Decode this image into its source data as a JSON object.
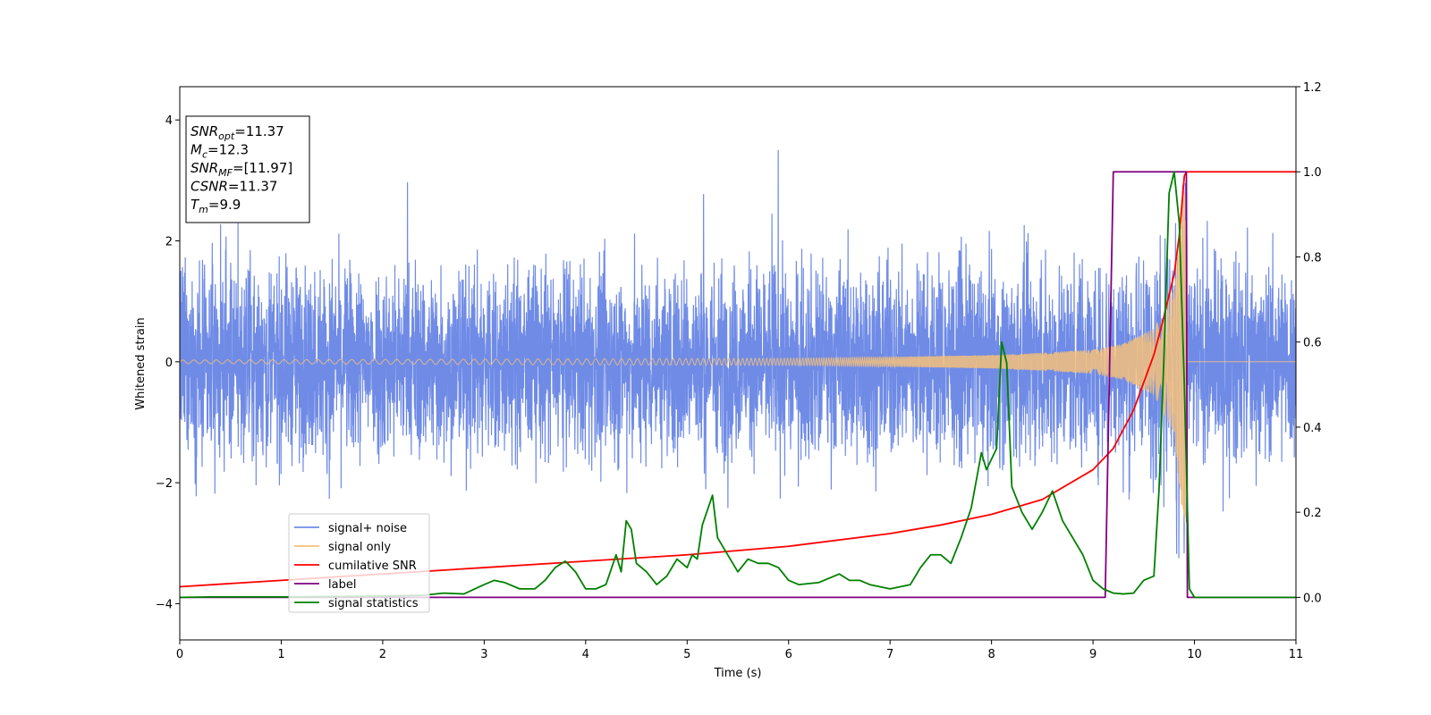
{
  "chart_data": {
    "type": "line",
    "xlabel": "Time (s)",
    "ylabel_left": "Whitened strain",
    "xlim": [
      0,
      11
    ],
    "ylim_left": [
      -4.6,
      4.55
    ],
    "ylim_right": [
      -0.1,
      1.2
    ],
    "xticks": [
      "0",
      "1",
      "2",
      "3",
      "4",
      "5",
      "6",
      "7",
      "8",
      "9",
      "10",
      "11"
    ],
    "yticks_left": [
      "−4",
      "−2",
      "0",
      "2",
      "4"
    ],
    "yticks_right": [
      "0.0",
      "0.2",
      "0.4",
      "0.6",
      "0.8",
      "1.0",
      "1.2"
    ],
    "grid": false,
    "legend_position": "lower-left",
    "info_box": {
      "lines": [
        {
          "main": "SNR",
          "sub": "opt",
          "rest": "=11.37"
        },
        {
          "main": "M",
          "sub": "c",
          "rest": "=12.3"
        },
        {
          "main": "SNR",
          "sub": "MF",
          "rest": "=[11.97]"
        },
        {
          "main": "CSNR",
          "sub": "",
          "rest": "=11.37"
        },
        {
          "main": "T",
          "sub": "m",
          "rest": "=9.9"
        }
      ]
    },
    "series": [
      {
        "name": "signal+ noise",
        "color": "#6f8be6",
        "axis": "left",
        "description_amplitude": "noise envelope roughly ±2.5 with spikes to ±4",
        "x_range": [
          0,
          11
        ]
      },
      {
        "name": "signal only",
        "color": "#f5c07a",
        "axis": "left",
        "chirp_x": [
          0,
          2,
          4,
          6,
          7,
          8,
          8.5,
          9,
          9.3,
          9.6,
          9.8,
          9.9,
          10,
          11
        ],
        "chirp_envelope": [
          0.03,
          0.04,
          0.05,
          0.06,
          0.08,
          0.11,
          0.15,
          0.2,
          0.3,
          0.55,
          1.2,
          2.9,
          0,
          0
        ]
      },
      {
        "name": "cumilative SNR",
        "color": "#ff0000",
        "axis": "right",
        "x": [
          0,
          1,
          2,
          3,
          4,
          5,
          6,
          7,
          7.5,
          8,
          8.5,
          9,
          9.2,
          9.4,
          9.6,
          9.7,
          9.8,
          9.85,
          9.9,
          9.92,
          11
        ],
        "y": [
          0.025,
          0.04,
          0.055,
          0.07,
          0.085,
          0.1,
          0.12,
          0.15,
          0.17,
          0.195,
          0.23,
          0.3,
          0.35,
          0.44,
          0.57,
          0.66,
          0.76,
          0.85,
          0.99,
          1.0,
          1.0
        ]
      },
      {
        "name": "label",
        "color": "#800080",
        "axis": "right",
        "x": [
          0,
          9.12,
          9.2,
          9.92,
          9.93,
          11
        ],
        "y": [
          0,
          0,
          1,
          1,
          0,
          0
        ]
      },
      {
        "name": "signal statistics",
        "color": "#008000",
        "axis": "right",
        "x": [
          0,
          0.3,
          1.0,
          1.5,
          2.0,
          2.4,
          2.6,
          2.8,
          3.0,
          3.1,
          3.2,
          3.35,
          3.5,
          3.6,
          3.7,
          3.8,
          3.9,
          4.0,
          4.1,
          4.2,
          4.3,
          4.35,
          4.4,
          4.45,
          4.5,
          4.6,
          4.7,
          4.8,
          4.9,
          5.0,
          5.05,
          5.1,
          5.15,
          5.25,
          5.3,
          5.45,
          5.5,
          5.6,
          5.7,
          5.8,
          5.9,
          6.0,
          6.1,
          6.3,
          6.5,
          6.6,
          6.7,
          6.8,
          6.9,
          7.0,
          7.1,
          7.2,
          7.3,
          7.4,
          7.5,
          7.6,
          7.7,
          7.8,
          7.9,
          7.95,
          8.05,
          8.1,
          8.15,
          8.2,
          8.3,
          8.4,
          8.5,
          8.6,
          8.7,
          8.8,
          8.9,
          9.0,
          9.1,
          9.2,
          9.3,
          9.4,
          9.5,
          9.6,
          9.65,
          9.7,
          9.75,
          9.8,
          9.85,
          9.9,
          9.95,
          10.0,
          10.5,
          11.0
        ],
        "y": [
          0.0,
          0.001,
          0.001,
          0.002,
          0.003,
          0.005,
          0.01,
          0.008,
          0.03,
          0.04,
          0.035,
          0.02,
          0.02,
          0.04,
          0.07,
          0.085,
          0.06,
          0.02,
          0.02,
          0.03,
          0.1,
          0.06,
          0.18,
          0.16,
          0.08,
          0.06,
          0.03,
          0.05,
          0.09,
          0.07,
          0.1,
          0.09,
          0.17,
          0.24,
          0.14,
          0.08,
          0.06,
          0.09,
          0.08,
          0.08,
          0.07,
          0.04,
          0.03,
          0.035,
          0.055,
          0.04,
          0.04,
          0.03,
          0.025,
          0.02,
          0.025,
          0.03,
          0.07,
          0.1,
          0.1,
          0.08,
          0.14,
          0.21,
          0.34,
          0.3,
          0.35,
          0.6,
          0.55,
          0.26,
          0.2,
          0.16,
          0.2,
          0.25,
          0.18,
          0.14,
          0.1,
          0.04,
          0.02,
          0.01,
          0.008,
          0.01,
          0.04,
          0.05,
          0.25,
          0.57,
          0.95,
          1.0,
          0.88,
          0.5,
          0.02,
          0.0,
          0.0,
          0.0
        ]
      }
    ]
  }
}
